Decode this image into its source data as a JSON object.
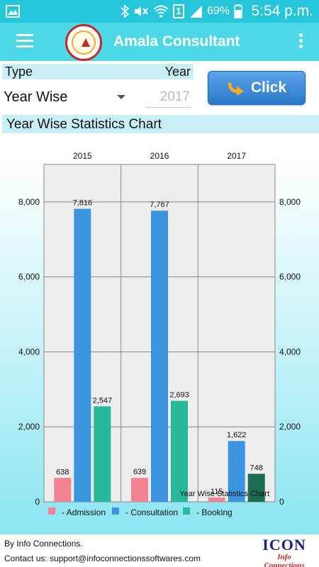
{
  "status_bar": {
    "battery": "69%",
    "sim": "1",
    "time": "5:54 p.m."
  },
  "app_bar": {
    "title": "Amala Consultant"
  },
  "form": {
    "type_label": "Type",
    "year_label": "Year",
    "type_value": "Year Wise",
    "year_value": "2017",
    "click_label": "Click"
  },
  "section": {
    "title": "Year Wise Statistics Chart"
  },
  "chart_data": {
    "type": "bar",
    "categories": [
      "2015",
      "2016",
      "2017"
    ],
    "series": [
      {
        "name": "- Admission",
        "values": [
          638,
          639,
          115
        ],
        "color": "#f48391"
      },
      {
        "name": "- Consultation",
        "values": [
          7816,
          7767,
          1622
        ],
        "color": "#3b94e0"
      },
      {
        "name": "- Booking",
        "values": [
          2547,
          2693,
          748
        ],
        "color": "#26b99a"
      }
    ],
    "data_labels": [
      [
        "638",
        "7,816",
        "2,547"
      ],
      [
        "639",
        "7,767",
        "2,693"
      ],
      [
        "115",
        "1,622",
        "748"
      ]
    ],
    "ylim": [
      0,
      9000
    ],
    "yticks": [
      0,
      2000,
      4000,
      6000,
      8000
    ],
    "ytick_labels": [
      "0",
      "2,000",
      "4,000",
      "6,000",
      "8,000"
    ],
    "grid": true,
    "legend": "bottom",
    "description": "Year Wise Statistics Chart",
    "highlight": {
      "category": "2017",
      "series": "- Booking",
      "color": "#1e6b55"
    },
    "colors": {
      "plot_bg": "#eeeeee",
      "grid": "#888888"
    }
  },
  "footer": {
    "by": "By Info Connections.",
    "contact": "Contact us: support@infoconnectionssoftwares.com",
    "brand_big": "ICON",
    "brand_small": "Info Connections"
  }
}
